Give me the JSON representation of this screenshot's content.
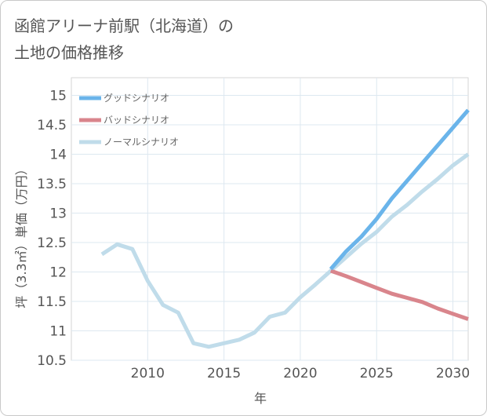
{
  "title_line1": "函館アリーナ前駅（北海道）の",
  "title_line2": "土地の価格推移",
  "chart_data": {
    "type": "line",
    "title": "函館アリーナ前駅（北海道）の土地の価格推移",
    "xlabel": "年",
    "ylabel": "坪（3.3㎡）単価（万円）",
    "xlim": [
      2005,
      2031
    ],
    "ylim": [
      10.5,
      15.3
    ],
    "xticks": [
      2010,
      2015,
      2020,
      2025,
      2030
    ],
    "yticks": [
      10.5,
      11,
      11.5,
      12,
      12.5,
      13,
      13.5,
      14,
      14.5,
      15
    ],
    "grid": true,
    "legend_position": "top-left",
    "series": [
      {
        "name": "グッドシナリオ",
        "color": "#6ab4ea",
        "x": [
          2022,
          2023,
          2024,
          2025,
          2026,
          2027,
          2028,
          2029,
          2030,
          2031
        ],
        "y": [
          12.05,
          12.35,
          12.6,
          12.9,
          13.25,
          13.55,
          13.85,
          14.15,
          14.45,
          14.75
        ]
      },
      {
        "name": "バッドシナリオ",
        "color": "#d9858c",
        "x": [
          2022,
          2023,
          2024,
          2025,
          2026,
          2027,
          2028,
          2029,
          2030,
          2031
        ],
        "y": [
          12.02,
          11.93,
          11.83,
          11.73,
          11.63,
          11.56,
          11.49,
          11.38,
          11.29,
          11.2
        ]
      },
      {
        "name": "ノーマルシナリオ",
        "color": "#c0dcea",
        "x": [
          2007,
          2008,
          2009,
          2010,
          2011,
          2012,
          2013,
          2014,
          2015,
          2016,
          2017,
          2018,
          2019,
          2020,
          2021,
          2022,
          2023,
          2024,
          2025,
          2026,
          2027,
          2028,
          2029,
          2030,
          2031
        ],
        "y": [
          12.3,
          12.47,
          12.39,
          11.85,
          11.44,
          11.31,
          10.79,
          10.73,
          10.79,
          10.85,
          10.97,
          11.24,
          11.31,
          11.57,
          11.79,
          12.02,
          12.25,
          12.48,
          12.68,
          12.94,
          13.14,
          13.37,
          13.58,
          13.81,
          14.0
        ]
      }
    ]
  }
}
